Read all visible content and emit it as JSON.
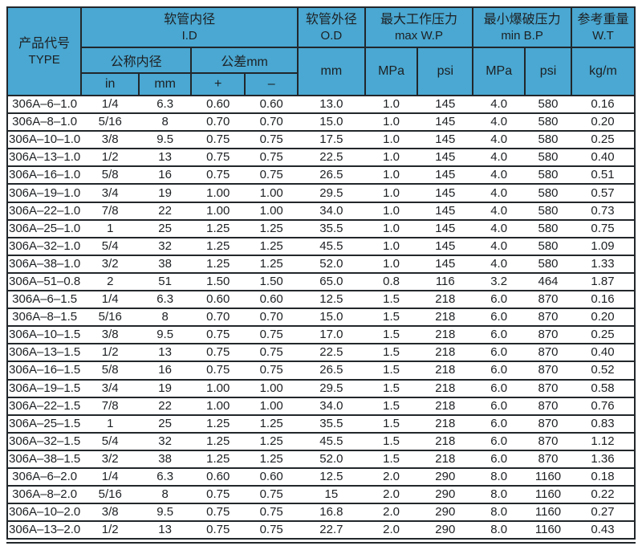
{
  "colors": {
    "header_bg": "#4aa8d2",
    "border": "#22272b",
    "text": "#1d2023"
  },
  "chart_data": {
    "type": "table",
    "header": {
      "type_zh": "产品代号",
      "type_en": "TYPE",
      "id_zh": "软管内径",
      "id_en": "I.D",
      "nominal_zh": "公称内径",
      "tolerance_zh": "公差mm",
      "in_label": "in",
      "mm_label": "mm",
      "plus_label": "+",
      "minus_label": "–",
      "od_zh": "软管外径",
      "od_en": "O.D",
      "od_unit": "mm",
      "maxwp_zh": "最大工作压力",
      "maxwp_en": "max W.P",
      "maxwp_mpa": "MPa",
      "maxwp_psi": "psi",
      "minbp_zh": "最小爆破压力",
      "minbp_en": "min B.P",
      "minbp_mpa": "MPa",
      "minbp_psi": "psi",
      "wt_zh": "参考重量",
      "wt_en": "W.T",
      "wt_unit": "kg/m"
    },
    "columns": [
      "TYPE",
      "in",
      "mm",
      "+",
      "–",
      "O.D mm",
      "max W.P MPa",
      "max W.P psi",
      "min B.P MPa",
      "min B.P psi",
      "W.T kg/m"
    ],
    "rows": [
      [
        "306A–6–1.0",
        "1/4",
        "6.3",
        "0.60",
        "0.60",
        "13.0",
        "1.0",
        "145",
        "4.0",
        "580",
        "0.16"
      ],
      [
        "306A–8–1.0",
        "5/16",
        "8",
        "0.70",
        "0.70",
        "15.0",
        "1.0",
        "145",
        "4.0",
        "580",
        "0.20"
      ],
      [
        "306A–10–1.0",
        "3/8",
        "9.5",
        "0.75",
        "0.75",
        "17.5",
        "1.0",
        "145",
        "4.0",
        "580",
        "0.25"
      ],
      [
        "306A–13–1.0",
        "1/2",
        "13",
        "0.75",
        "0.75",
        "22.5",
        "1.0",
        "145",
        "4.0",
        "580",
        "0.40"
      ],
      [
        "306A–16–1.0",
        "5/8",
        "16",
        "0.75",
        "0.75",
        "26.5",
        "1.0",
        "145",
        "4.0",
        "580",
        "0.51"
      ],
      [
        "306A–19–1.0",
        "3/4",
        "19",
        "1.00",
        "1.00",
        "29.5",
        "1.0",
        "145",
        "4.0",
        "580",
        "0.57"
      ],
      [
        "306A–22–1.0",
        "7/8",
        "22",
        "1.00",
        "1.00",
        "34.0",
        "1.0",
        "145",
        "4.0",
        "580",
        "0.73"
      ],
      [
        "306A–25–1.0",
        "1",
        "25",
        "1.25",
        "1.25",
        "35.5",
        "1.0",
        "145",
        "4.0",
        "580",
        "0.75"
      ],
      [
        "306A–32–1.0",
        "5/4",
        "32",
        "1.25",
        "1.25",
        "45.5",
        "1.0",
        "145",
        "4.0",
        "580",
        "1.09"
      ],
      [
        "306A–38–1.0",
        "3/2",
        "38",
        "1.25",
        "1.25",
        "52.0",
        "1.0",
        "145",
        "4.0",
        "580",
        "1.33"
      ],
      [
        "306A–51–0.8",
        "2",
        "51",
        "1.50",
        "1.50",
        "65.0",
        "0.8",
        "116",
        "3.2",
        "464",
        "1.87"
      ],
      [
        "306A–6–1.5",
        "1/4",
        "6.3",
        "0.60",
        "0.60",
        "12.5",
        "1.5",
        "218",
        "6.0",
        "870",
        "0.16"
      ],
      [
        "306A–8–1.5",
        "5/16",
        "8",
        "0.70",
        "0.70",
        "15.0",
        "1.5",
        "218",
        "6.0",
        "870",
        "0.20"
      ],
      [
        "306A–10–1.5",
        "3/8",
        "9.5",
        "0.75",
        "0.75",
        "17.0",
        "1.5",
        "218",
        "6.0",
        "870",
        "0.25"
      ],
      [
        "306A–13–1.5",
        "1/2",
        "13",
        "0.75",
        "0.75",
        "22.5",
        "1.5",
        "218",
        "6.0",
        "870",
        "0.40"
      ],
      [
        "306A–16–1.5",
        "5/8",
        "16",
        "0.75",
        "0.75",
        "26.5",
        "1.5",
        "218",
        "6.0",
        "870",
        "0.52"
      ],
      [
        "306A–19–1.5",
        "3/4",
        "19",
        "1.00",
        "1.00",
        "29.5",
        "1.5",
        "218",
        "6.0",
        "870",
        "0.58"
      ],
      [
        "306A–22–1.5",
        "7/8",
        "22",
        "1.00",
        "1.00",
        "34.0",
        "1.5",
        "218",
        "6.0",
        "870",
        "0.76"
      ],
      [
        "306A–25–1.5",
        "1",
        "25",
        "1.25",
        "1.25",
        "35.5",
        "1.5",
        "218",
        "6.0",
        "870",
        "0.83"
      ],
      [
        "306A–32–1.5",
        "5/4",
        "32",
        "1.25",
        "1.25",
        "45.5",
        "1.5",
        "218",
        "6.0",
        "870",
        "1.12"
      ],
      [
        "306A–38–1.5",
        "3/2",
        "38",
        "1.25",
        "1.25",
        "52.0",
        "1.5",
        "218",
        "6.0",
        "870",
        "1.36"
      ],
      [
        "306A–6–2.0",
        "1/4",
        "6.3",
        "0.60",
        "0.60",
        "12.5",
        "2.0",
        "290",
        "8.0",
        "1160",
        "0.18"
      ],
      [
        "306A–8–2.0",
        "5/16",
        "8",
        "0.75",
        "0.75",
        "15",
        "2.0",
        "290",
        "8.0",
        "1160",
        "0.22"
      ],
      [
        "306A–10–2.0",
        "3/8",
        "9.5",
        "0.75",
        "0.75",
        "16.8",
        "2.0",
        "290",
        "8.0",
        "1160",
        "0.27"
      ],
      [
        "306A–13–2.0",
        "1/2",
        "13",
        "0.75",
        "0.75",
        "22.7",
        "2.0",
        "290",
        "8.0",
        "1160",
        "0.43"
      ]
    ]
  }
}
